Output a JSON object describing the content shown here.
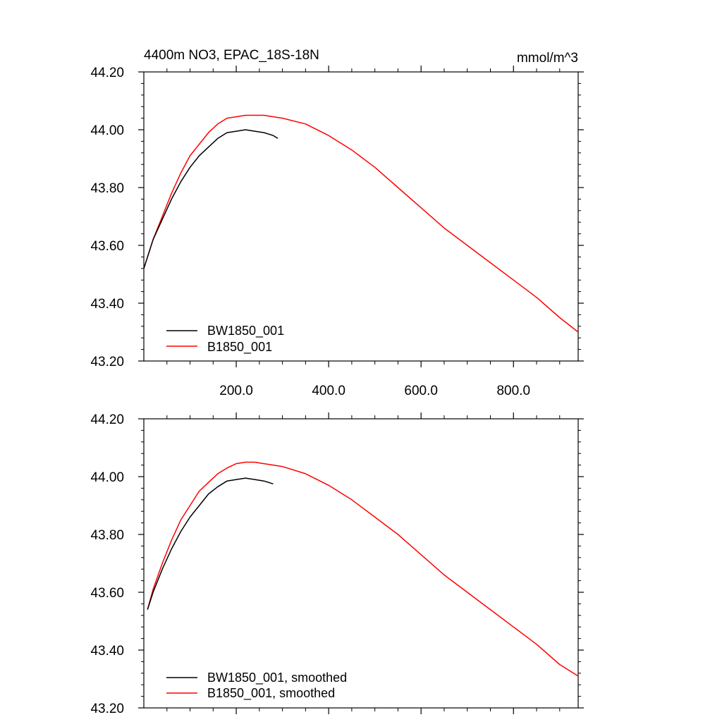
{
  "chart_data": [
    {
      "type": "line",
      "title": "4400m NO3, EPAC_18S-18N",
      "units": "mmol/m^3",
      "xlim": [
        0,
        940
      ],
      "ylim": [
        43.2,
        44.2
      ],
      "xticks": [
        200,
        400,
        600,
        800
      ],
      "xtick_labels": [
        "200.0",
        "400.0",
        "600.0",
        "800.0"
      ],
      "yticks": [
        43.2,
        43.4,
        43.6,
        43.8,
        44.0,
        44.2
      ],
      "ytick_labels": [
        "43.20",
        "43.40",
        "43.60",
        "43.80",
        "44.00",
        "44.20"
      ],
      "legend_position": "bottom-left",
      "series": [
        {
          "name": "BW1850_001",
          "color": "#000000",
          "x": [
            0,
            20,
            40,
            60,
            80,
            100,
            120,
            140,
            160,
            180,
            200,
            220,
            240,
            260,
            280,
            290
          ],
          "y": [
            43.52,
            43.62,
            43.69,
            43.76,
            43.82,
            43.87,
            43.91,
            43.94,
            43.97,
            43.99,
            43.995,
            44.0,
            43.995,
            43.99,
            43.98,
            43.97
          ]
        },
        {
          "name": "B1850_001",
          "color": "#ff0000",
          "x": [
            0,
            20,
            40,
            60,
            80,
            100,
            120,
            140,
            160,
            180,
            200,
            220,
            240,
            260,
            280,
            300,
            350,
            400,
            450,
            500,
            550,
            600,
            650,
            700,
            750,
            800,
            850,
            900,
            940
          ],
          "y": [
            43.52,
            43.62,
            43.7,
            43.78,
            43.85,
            43.91,
            43.95,
            43.99,
            44.02,
            44.04,
            44.045,
            44.05,
            44.05,
            44.05,
            44.045,
            44.04,
            44.02,
            43.98,
            43.93,
            43.87,
            43.8,
            43.73,
            43.66,
            43.6,
            43.54,
            43.48,
            43.42,
            43.35,
            43.3
          ]
        }
      ]
    },
    {
      "type": "line",
      "xlim": [
        0,
        940
      ],
      "ylim": [
        43.2,
        44.2
      ],
      "yticks": [
        43.2,
        43.4,
        43.6,
        43.8,
        44.0,
        44.2
      ],
      "ytick_labels": [
        "43.20",
        "43.40",
        "43.60",
        "43.80",
        "44.00",
        "44.20"
      ],
      "legend_position": "bottom-left",
      "series": [
        {
          "name": "BW1850_001, smoothed",
          "color": "#000000",
          "x": [
            8,
            20,
            40,
            60,
            80,
            100,
            120,
            140,
            160,
            180,
            200,
            220,
            240,
            260,
            280
          ],
          "y": [
            43.54,
            43.6,
            43.68,
            43.75,
            43.81,
            43.86,
            43.9,
            43.94,
            43.965,
            43.985,
            43.99,
            43.995,
            43.99,
            43.985,
            43.975
          ]
        },
        {
          "name": "B1850_001, smoothed",
          "color": "#ff0000",
          "x": [
            8,
            20,
            40,
            60,
            80,
            100,
            120,
            140,
            160,
            180,
            200,
            220,
            240,
            260,
            280,
            300,
            350,
            400,
            450,
            500,
            550,
            600,
            650,
            700,
            750,
            800,
            850,
            900,
            940
          ],
          "y": [
            43.54,
            43.61,
            43.7,
            43.78,
            43.85,
            43.9,
            43.95,
            43.98,
            44.01,
            44.03,
            44.045,
            44.05,
            44.05,
            44.045,
            44.04,
            44.035,
            44.01,
            43.97,
            43.92,
            43.86,
            43.8,
            43.73,
            43.66,
            43.6,
            43.54,
            43.48,
            43.42,
            43.35,
            43.31
          ]
        }
      ]
    }
  ]
}
